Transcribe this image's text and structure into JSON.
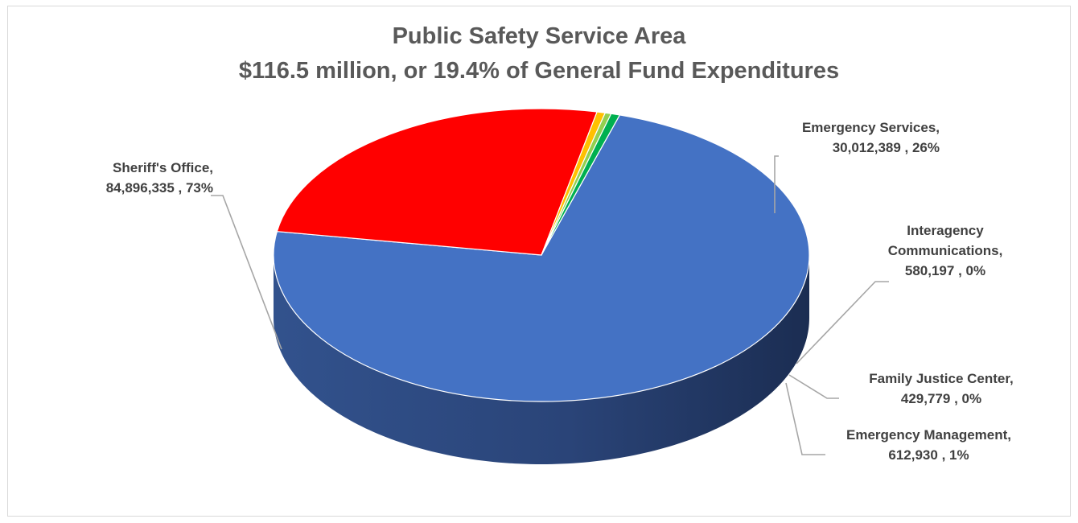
{
  "chart_data": {
    "type": "pie",
    "title_lines": [
      "Public Safety Service Area",
      "$116.5 million, or 19.4% of General Fund Expenditures"
    ],
    "three_d": true,
    "slices": [
      {
        "name": "Sheriff's Office",
        "value": 84896335,
        "value_label": "84,896,335",
        "percent_label": "73%",
        "color": "#4472c4"
      },
      {
        "name": "Emergency Services",
        "value": 30012389,
        "value_label": "30,012,389",
        "percent_label": "26%",
        "color": "#ff0000"
      },
      {
        "name": "Interagency Communications",
        "value": 580197,
        "value_label": "580,197",
        "percent_label": "0%",
        "color": "#ffc000"
      },
      {
        "name": "Family Justice Center",
        "value": 429779,
        "value_label": "429,779",
        "percent_label": "0%",
        "color": "#92d050"
      },
      {
        "name": "Emergency Management",
        "value": 612930,
        "value_label": "612,930",
        "percent_label": "1%",
        "color": "#00b050"
      }
    ],
    "labels": {
      "sheriff": {
        "line1": "Sheriff's Office,",
        "line2": "84,896,335 , 73%"
      },
      "emergency_services": {
        "line1": "Emergency Services,",
        "line2": "30,012,389 , 26%"
      },
      "interagency": {
        "line1": "Interagency",
        "line2": "Communications,",
        "line3": "580,197 , 0%"
      },
      "family_justice": {
        "line1": "Family Justice Center,",
        "line2": "429,779 , 0%"
      },
      "emergency_management": {
        "line1": "Emergency Management,",
        "line2": "612,930 , 1%"
      }
    }
  }
}
